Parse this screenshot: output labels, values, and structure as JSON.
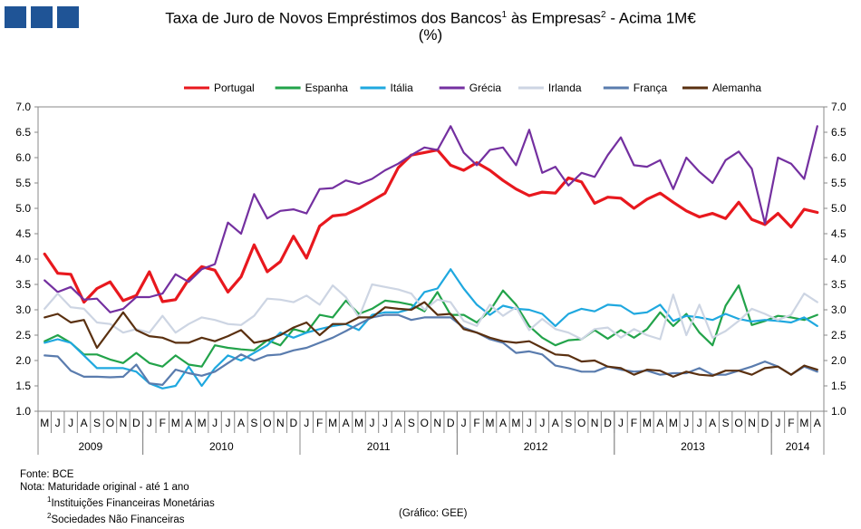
{
  "header": {
    "title_main": "Taxa de Juro de Novos Empréstimos dos Bancos",
    "title_sup1": "1",
    "title_mid": " às Empresas",
    "title_sup2": "2",
    "title_end": " - Acima 1M€",
    "subtitle": "(%)"
  },
  "footer": {
    "source": "Fonte: BCE",
    "note": "Nota:  Maturidade original - até 1 ano",
    "note1_sup": "1",
    "note1": "Instituições Financeiras Monetárias",
    "note2_sup": "2",
    "note2": "Sociedades Não Financeiras",
    "credit": "(Gráfico:  GEE)"
  },
  "chart_data": {
    "type": "line",
    "title": "Taxa de Juro de Novos Empréstimos dos Bancos às Empresas - Acima 1M€ (%)",
    "ylim": [
      1.0,
      7.0
    ],
    "yticks": [
      "1.0",
      "1.5",
      "2.0",
      "2.5",
      "3.0",
      "3.5",
      "4.0",
      "4.5",
      "5.0",
      "5.5",
      "6.0",
      "6.5",
      "7.0"
    ],
    "months": [
      "M",
      "J",
      "J",
      "A",
      "S",
      "O",
      "N",
      "D",
      "J",
      "F",
      "M",
      "A",
      "M",
      "J",
      "J",
      "A",
      "S",
      "O",
      "N",
      "D",
      "J",
      "F",
      "M",
      "A",
      "M",
      "J",
      "J",
      "A",
      "S",
      "O",
      "N",
      "D",
      "J",
      "F",
      "M",
      "A",
      "M",
      "J",
      "J",
      "A",
      "S",
      "O",
      "N",
      "D",
      "J",
      "F",
      "M",
      "A",
      "M",
      "J",
      "J",
      "A",
      "S",
      "O",
      "N",
      "D",
      "J",
      "F",
      "M",
      "A"
    ],
    "years": [
      {
        "label": "2009",
        "start": 0,
        "count": 8
      },
      {
        "label": "2010",
        "start": 8,
        "count": 12
      },
      {
        "label": "2011",
        "start": 20,
        "count": 12
      },
      {
        "label": "2012",
        "start": 32,
        "count": 12
      },
      {
        "label": "2013",
        "start": 44,
        "count": 12
      },
      {
        "label": "2014",
        "start": 56,
        "count": 4
      }
    ],
    "series": [
      {
        "name": "Portugal",
        "color": "#e8181e",
        "width": 3.2,
        "values": [
          4.1,
          3.72,
          3.7,
          3.15,
          3.42,
          3.55,
          3.18,
          3.28,
          3.75,
          3.16,
          3.2,
          3.6,
          3.85,
          3.78,
          3.35,
          3.65,
          4.28,
          3.75,
          3.95,
          4.45,
          4.02,
          4.65,
          4.85,
          4.88,
          5.0,
          5.15,
          5.3,
          5.8,
          6.05,
          6.1,
          6.15,
          5.85,
          5.75,
          5.9,
          5.75,
          5.55,
          5.38,
          5.25,
          5.32,
          5.3,
          5.6,
          5.52,
          5.1,
          5.22,
          5.2,
          5.0,
          5.18,
          5.3,
          5.12,
          4.95,
          4.83,
          4.9,
          4.8,
          5.12,
          4.78,
          4.68,
          4.9,
          4.63,
          4.98,
          4.92
        ]
      },
      {
        "name": "Espanha",
        "color": "#22a34a",
        "width": 2.2,
        "values": [
          2.38,
          2.5,
          2.35,
          2.12,
          2.12,
          2.02,
          1.95,
          2.15,
          1.95,
          1.88,
          2.1,
          1.92,
          1.88,
          2.3,
          2.25,
          2.22,
          2.2,
          2.4,
          2.3,
          2.62,
          2.55,
          2.9,
          2.85,
          3.18,
          2.92,
          3.02,
          3.18,
          3.15,
          3.1,
          2.97,
          3.35,
          2.9,
          2.9,
          2.75,
          2.98,
          3.38,
          3.1,
          2.68,
          2.45,
          2.3,
          2.4,
          2.42,
          2.6,
          2.43,
          2.6,
          2.45,
          2.62,
          2.95,
          2.68,
          2.92,
          2.55,
          2.3,
          3.08,
          3.48,
          2.7,
          2.78,
          2.88,
          2.85,
          2.8,
          2.9
        ]
      },
      {
        "name": "Itália",
        "color": "#1fa8df",
        "width": 2.2,
        "values": [
          2.35,
          2.42,
          2.35,
          2.1,
          1.85,
          1.85,
          1.85,
          1.78,
          1.55,
          1.45,
          1.5,
          1.88,
          1.5,
          1.85,
          2.1,
          2.0,
          2.15,
          2.3,
          2.55,
          2.45,
          2.55,
          2.62,
          2.68,
          2.72,
          2.6,
          2.9,
          2.95,
          2.95,
          3.02,
          3.35,
          3.42,
          3.8,
          3.42,
          3.1,
          2.9,
          3.08,
          3.02,
          3.0,
          2.92,
          2.68,
          2.92,
          3.02,
          2.97,
          3.1,
          3.08,
          2.92,
          2.95,
          3.1,
          2.78,
          2.88,
          2.85,
          2.8,
          2.92,
          2.82,
          2.77,
          2.8,
          2.78,
          2.75,
          2.85,
          2.68
        ]
      },
      {
        "name": "Grécia",
        "color": "#7430a0",
        "width": 2.2,
        "values": [
          3.58,
          3.35,
          3.45,
          3.2,
          3.22,
          2.95,
          3.02,
          3.25,
          3.25,
          3.32,
          3.7,
          3.55,
          3.8,
          3.9,
          4.72,
          4.5,
          5.28,
          4.8,
          4.95,
          4.98,
          4.9,
          5.38,
          5.4,
          5.55,
          5.48,
          5.58,
          5.75,
          5.88,
          6.05,
          6.2,
          6.15,
          6.62,
          6.1,
          5.85,
          6.15,
          6.2,
          5.85,
          6.55,
          5.7,
          5.82,
          5.45,
          5.7,
          5.62,
          6.05,
          6.4,
          5.85,
          5.82,
          5.95,
          5.38,
          6.0,
          5.72,
          5.5,
          5.95,
          6.12,
          5.78,
          4.7,
          6.0,
          5.88,
          5.58,
          6.62
        ]
      },
      {
        "name": "Irlanda",
        "color": "#cdd5e3",
        "width": 2.2,
        "values": [
          3.02,
          3.32,
          3.05,
          3.02,
          2.75,
          2.72,
          2.55,
          2.62,
          2.55,
          2.88,
          2.55,
          2.72,
          2.85,
          2.8,
          2.72,
          2.7,
          2.88,
          3.22,
          3.2,
          3.15,
          3.28,
          3.1,
          3.48,
          3.25,
          2.85,
          3.5,
          3.45,
          3.4,
          3.32,
          3.0,
          3.2,
          3.15,
          2.78,
          2.68,
          3.1,
          2.88,
          3.05,
          2.6,
          2.82,
          2.62,
          2.55,
          2.42,
          2.62,
          2.65,
          2.45,
          2.62,
          2.5,
          2.42,
          3.3,
          2.5,
          3.1,
          2.45,
          2.58,
          2.78,
          3.02,
          2.92,
          2.8,
          2.9,
          3.32,
          3.15
        ]
      },
      {
        "name": "França",
        "color": "#5a7cae",
        "width": 2.2,
        "values": [
          2.1,
          2.08,
          1.8,
          1.68,
          1.68,
          1.67,
          1.68,
          1.92,
          1.55,
          1.52,
          1.82,
          1.75,
          1.7,
          1.78,
          1.95,
          2.12,
          2.0,
          2.1,
          2.12,
          2.2,
          2.25,
          2.35,
          2.45,
          2.58,
          2.72,
          2.85,
          2.9,
          2.9,
          2.8,
          2.85,
          2.85,
          2.85,
          2.65,
          2.55,
          2.42,
          2.35,
          2.15,
          2.18,
          2.12,
          1.9,
          1.85,
          1.78,
          1.78,
          1.88,
          1.82,
          1.78,
          1.8,
          1.72,
          1.75,
          1.75,
          1.85,
          1.72,
          1.72,
          1.8,
          1.88,
          1.98,
          1.88,
          1.72,
          1.88,
          1.78
        ]
      },
      {
        "name": "Alemanha",
        "color": "#5a3010",
        "width": 2.2,
        "values": [
          2.85,
          2.92,
          2.75,
          2.8,
          2.25,
          2.6,
          2.95,
          2.6,
          2.48,
          2.45,
          2.35,
          2.35,
          2.45,
          2.38,
          2.48,
          2.6,
          2.35,
          2.4,
          2.5,
          2.65,
          2.75,
          2.5,
          2.72,
          2.72,
          2.85,
          2.85,
          3.05,
          3.02,
          3.0,
          3.15,
          2.9,
          2.92,
          2.62,
          2.55,
          2.45,
          2.38,
          2.35,
          2.38,
          2.25,
          2.12,
          2.1,
          1.98,
          2.0,
          1.88,
          1.85,
          1.72,
          1.82,
          1.8,
          1.68,
          1.78,
          1.72,
          1.7,
          1.8,
          1.8,
          1.72,
          1.85,
          1.88,
          1.72,
          1.9,
          1.82
        ]
      }
    ]
  }
}
